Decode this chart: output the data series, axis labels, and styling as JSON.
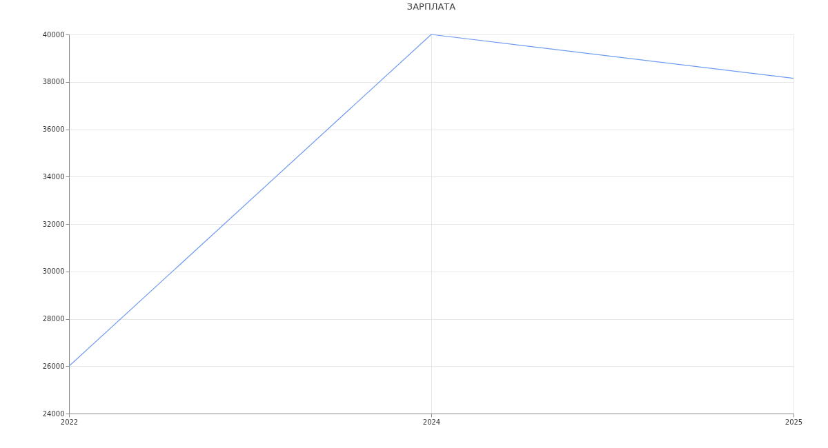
{
  "chart_data": {
    "type": "line",
    "title": "ЗАРПЛАТА",
    "categories": [
      "2022",
      "2024",
      "2025"
    ],
    "series": [
      {
        "color": "#6d9af0",
        "values": [
          26000,
          40000,
          38150
        ]
      }
    ],
    "ylim": [
      24000,
      40000
    ],
    "yticks": [
      24000,
      26000,
      28000,
      30000,
      32000,
      34000,
      36000,
      38000,
      40000
    ],
    "grid": true,
    "legend": false,
    "marker": "none",
    "line_style": "solid"
  }
}
